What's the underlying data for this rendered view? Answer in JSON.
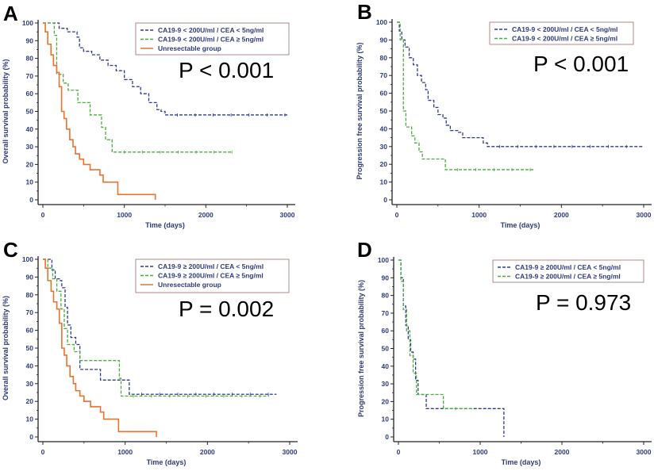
{
  "chart_data": [
    {
      "panel": "A",
      "type": "line",
      "step": true,
      "xlabel": "Time (days)",
      "ylabel": "Overall survival probability (%)",
      "xlim": [
        0,
        3000
      ],
      "ylim": [
        0,
        100
      ],
      "xticks": [
        0,
        1000,
        2000,
        3000
      ],
      "yticks": [
        0,
        10,
        20,
        30,
        40,
        50,
        60,
        70,
        80,
        90,
        100
      ],
      "annotation": "P < 0.001",
      "legend_position": "top-right",
      "series": [
        {
          "name": "CA19-9 < 200U/ml / CEA < 5ng/ml",
          "color": "#2e3a8c",
          "style": "dashed",
          "x": [
            0,
            120,
            200,
            300,
            420,
            450,
            500,
            600,
            700,
            800,
            900,
            1000,
            1100,
            1200,
            1300,
            1400,
            1450,
            1500,
            3000
          ],
          "y": [
            100,
            100,
            97,
            95,
            92,
            86,
            84,
            82,
            79,
            76,
            73,
            68,
            64,
            60,
            55,
            51,
            50,
            48,
            48
          ]
        },
        {
          "name": "CA19-9 < 200U/ml / CEA ≥ 5ng/ml",
          "color": "#4aab3f",
          "style": "dashed",
          "x": [
            0,
            80,
            140,
            170,
            250,
            310,
            430,
            580,
            720,
            770,
            850,
            2330
          ],
          "y": [
            100,
            100,
            93,
            71,
            66,
            62,
            55,
            48,
            41,
            34,
            27,
            27
          ]
        },
        {
          "name": "Unresectable group",
          "color": "#e8722f",
          "style": "solid",
          "x": [
            0,
            30,
            60,
            100,
            130,
            170,
            200,
            230,
            260,
            290,
            330,
            370,
            400,
            450,
            500,
            580,
            700,
            740,
            920,
            1380,
            1380
          ],
          "y": [
            100,
            95,
            88,
            82,
            76,
            72,
            64,
            50,
            46,
            40,
            34,
            30,
            26,
            23,
            20,
            17,
            14,
            10,
            3,
            3,
            0
          ]
        }
      ]
    },
    {
      "panel": "B",
      "type": "line",
      "step": true,
      "xlabel": "Time (days)",
      "ylabel": "Progression free survival probability (%)",
      "xlim": [
        0,
        3000
      ],
      "ylim": [
        0,
        100
      ],
      "xticks": [
        0,
        1000,
        2000,
        3000
      ],
      "yticks": [
        0,
        10,
        20,
        30,
        40,
        50,
        60,
        70,
        80,
        90,
        100
      ],
      "annotation": "P < 0.001",
      "legend_position": "top-right",
      "series": [
        {
          "name": "CA19-9 < 200U/ml / CEA < 5ng/ml",
          "color": "#2e3a8c",
          "style": "dashed",
          "x": [
            0,
            30,
            60,
            100,
            150,
            200,
            250,
            300,
            350,
            380,
            450,
            500,
            560,
            600,
            650,
            750,
            800,
            1000,
            1050,
            1100,
            3000
          ],
          "y": [
            100,
            95,
            90,
            86,
            80,
            76,
            70,
            66,
            62,
            56,
            52,
            48,
            46,
            42,
            39,
            38,
            35,
            35,
            32,
            30,
            30
          ]
        },
        {
          "name": "CA19-9 < 200U/ml / CEA ≥ 5ng/ml",
          "color": "#4aab3f",
          "style": "dashed",
          "x": [
            0,
            40,
            80,
            110,
            180,
            220,
            270,
            310,
            590,
            1680
          ],
          "y": [
            100,
            90,
            50,
            41,
            36,
            32,
            27,
            23,
            17,
            17
          ]
        }
      ]
    },
    {
      "panel": "C",
      "type": "line",
      "step": true,
      "xlabel": "Time (days)",
      "ylabel": "Overall survival probability (%)",
      "xlim": [
        0,
        3000
      ],
      "ylim": [
        0,
        100
      ],
      "xticks": [
        0,
        1000,
        2000,
        3000
      ],
      "yticks": [
        0,
        10,
        20,
        30,
        40,
        50,
        60,
        70,
        80,
        90,
        100
      ],
      "annotation": "P = 0.002",
      "legend_position": "top-right",
      "series": [
        {
          "name": "CA19-9 ≥ 200U/ml / CEA < 5ng/ml",
          "color": "#2e3a8c",
          "style": "dashed",
          "x": [
            0,
            80,
            110,
            150,
            200,
            230,
            270,
            300,
            340,
            400,
            450,
            700,
            1050,
            2840
          ],
          "y": [
            100,
            100,
            94,
            89,
            88,
            84,
            73,
            63,
            56,
            52,
            38,
            32,
            24,
            24
          ]
        },
        {
          "name": "CA19-9 ≥ 200U/ml / CEA ≥ 5ng/ml",
          "color": "#4aab3f",
          "style": "dashed",
          "x": [
            0,
            60,
            120,
            170,
            220,
            260,
            300,
            380,
            450,
            930,
            950,
            2750
          ],
          "y": [
            100,
            95,
            89,
            82,
            72,
            61,
            52,
            48,
            43,
            33,
            23,
            23
          ]
        },
        {
          "name": "Unresectable group",
          "color": "#e8722f",
          "style": "solid",
          "x": [
            0,
            30,
            60,
            100,
            130,
            170,
            200,
            230,
            260,
            290,
            330,
            370,
            400,
            450,
            500,
            580,
            700,
            740,
            920,
            1380,
            1380
          ],
          "y": [
            100,
            95,
            88,
            82,
            76,
            72,
            64,
            50,
            46,
            40,
            34,
            30,
            26,
            23,
            20,
            17,
            14,
            10,
            3,
            3,
            0
          ]
        }
      ]
    },
    {
      "panel": "D",
      "type": "line",
      "step": true,
      "xlabel": "Time (days)",
      "ylabel": "Progression free survival probability (%)",
      "xlim": [
        0,
        3000
      ],
      "ylim": [
        0,
        100
      ],
      "xticks": [
        0,
        1000,
        2000,
        3000
      ],
      "yticks": [
        0,
        10,
        20,
        30,
        40,
        50,
        60,
        70,
        80,
        90,
        100
      ],
      "annotation": "P = 0.973",
      "legend_position": "top-right",
      "series": [
        {
          "name": "CA19-9 ≥ 200U/ml / CEA < 5ng/ml",
          "color": "#2e3a8c",
          "style": "dashed",
          "x": [
            0,
            30,
            60,
            90,
            120,
            150,
            180,
            210,
            240,
            340,
            1290,
            1290
          ],
          "y": [
            100,
            90,
            74,
            63,
            55,
            48,
            44,
            32,
            24,
            16,
            16,
            0
          ]
        },
        {
          "name": "CA19-9 ≥ 200U/ml / CEA ≥ 5ng/ml",
          "color": "#4aab3f",
          "style": "dashed",
          "x": [
            0,
            30,
            60,
            100,
            140,
            180,
            220,
            550,
            920
          ],
          "y": [
            100,
            88,
            72,
            60,
            46,
            36,
            24,
            16,
            16
          ]
        }
      ]
    }
  ]
}
